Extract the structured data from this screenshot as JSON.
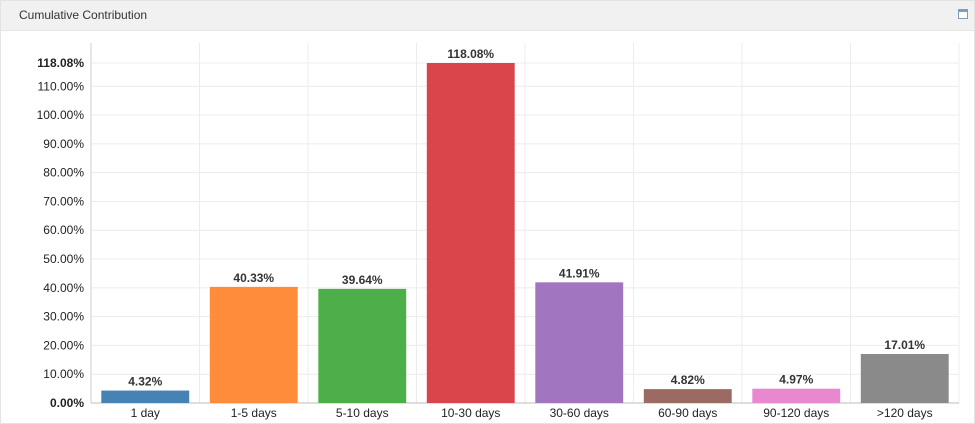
{
  "panel": {
    "title": "Cumulative Contribution",
    "maximize_icon": "maximize-window-icon"
  },
  "chart_data": {
    "type": "bar",
    "title": "",
    "xlabel": "",
    "ylabel": "",
    "ylim": [
      0,
      118.08
    ],
    "grid": true,
    "y_ticks": [
      "0.00%",
      "10.00%",
      "20.00%",
      "30.00%",
      "40.00%",
      "50.00%",
      "60.00%",
      "70.00%",
      "80.00%",
      "90.00%",
      "100.00%",
      "110.00%",
      "118.08%"
    ],
    "y_tick_values": [
      0,
      10,
      20,
      30,
      40,
      50,
      60,
      70,
      80,
      90,
      100,
      110,
      118.08
    ],
    "categories": [
      "1 day",
      "1-5 days",
      "5-10 days",
      "10-30 days",
      "30-60 days",
      "60-90 days",
      "90-120 days",
      ">120 days"
    ],
    "values": [
      4.32,
      40.33,
      39.64,
      118.08,
      41.91,
      4.82,
      4.97,
      17.01
    ],
    "labels": [
      "4.32%",
      "40.33%",
      "39.64%",
      "118.08%",
      "41.91%",
      "4.82%",
      "4.97%",
      "17.01%"
    ],
    "colors": [
      "#4682b4",
      "#ff8c3a",
      "#4daf4a",
      "#d9454b",
      "#a275c0",
      "#9b6a63",
      "#e889cf",
      "#8a8a8a"
    ]
  }
}
